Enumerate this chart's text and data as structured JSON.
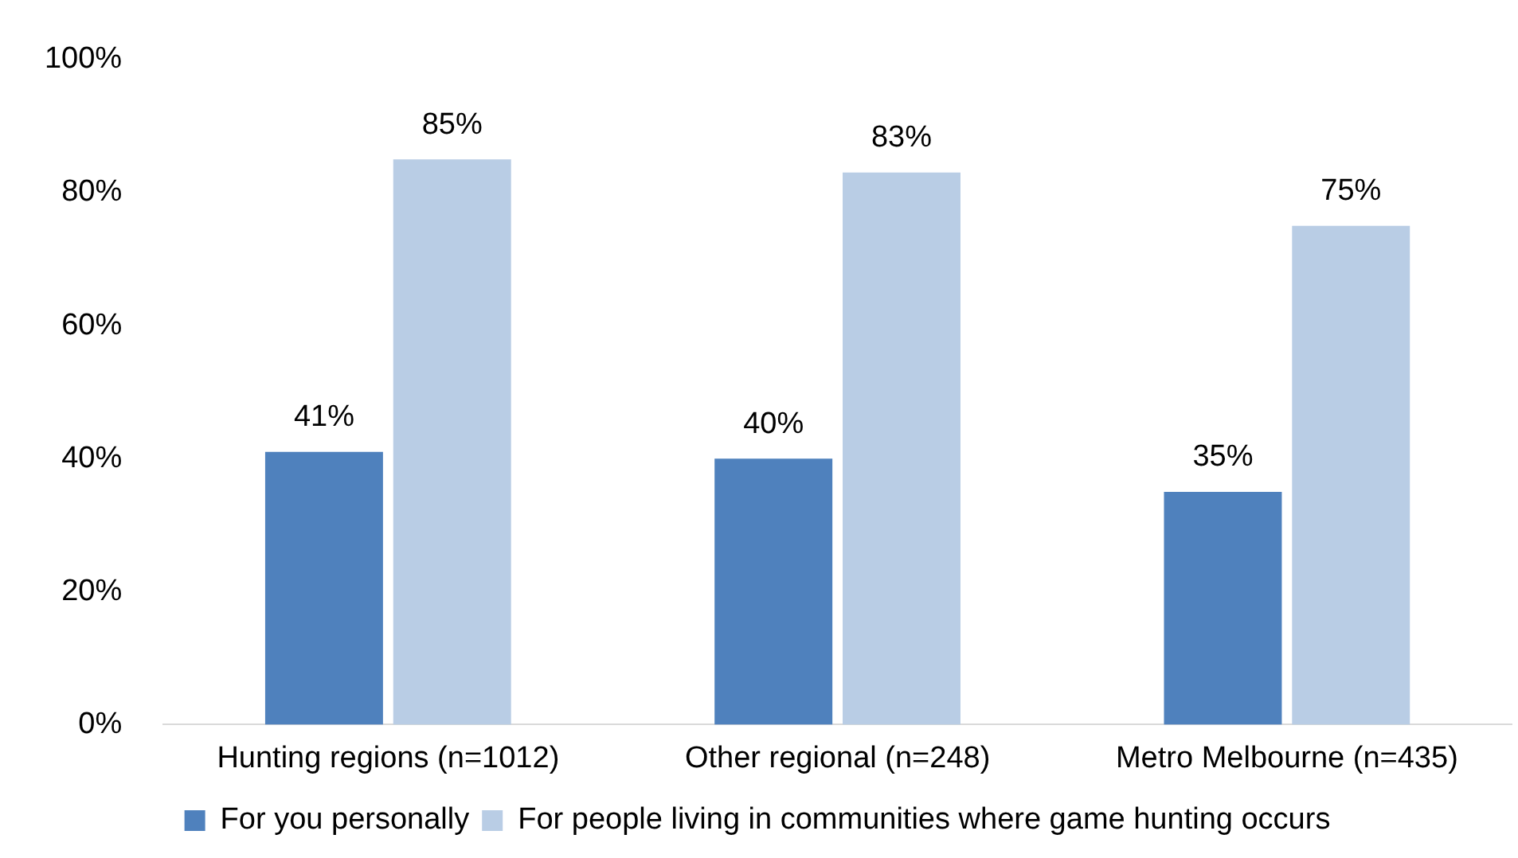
{
  "chart_data": {
    "type": "bar",
    "categories": [
      "Hunting regions (n=1012)",
      "Other regional (n=248)",
      "Metro Melbourne (n=435)"
    ],
    "series": [
      {
        "name": "For you personally",
        "color": "#4f81bd",
        "values": [
          41,
          40,
          35
        ],
        "value_labels": [
          "41%",
          "40%",
          "35%"
        ]
      },
      {
        "name": "For people living in communities where game hunting occurs",
        "color": "#b9cde5",
        "values": [
          85,
          83,
          75
        ],
        "value_labels": [
          "85%",
          "83%",
          "75%"
        ]
      }
    ],
    "ylim": [
      0,
      100
    ],
    "yticks": [
      {
        "value": 0,
        "label": "0%"
      },
      {
        "value": 20,
        "label": "20%"
      },
      {
        "value": 40,
        "label": "40%"
      },
      {
        "value": 60,
        "label": "60%"
      },
      {
        "value": 80,
        "label": "80%"
      },
      {
        "value": 100,
        "label": "100%"
      }
    ],
    "grid": false,
    "legend": "bottom"
  }
}
